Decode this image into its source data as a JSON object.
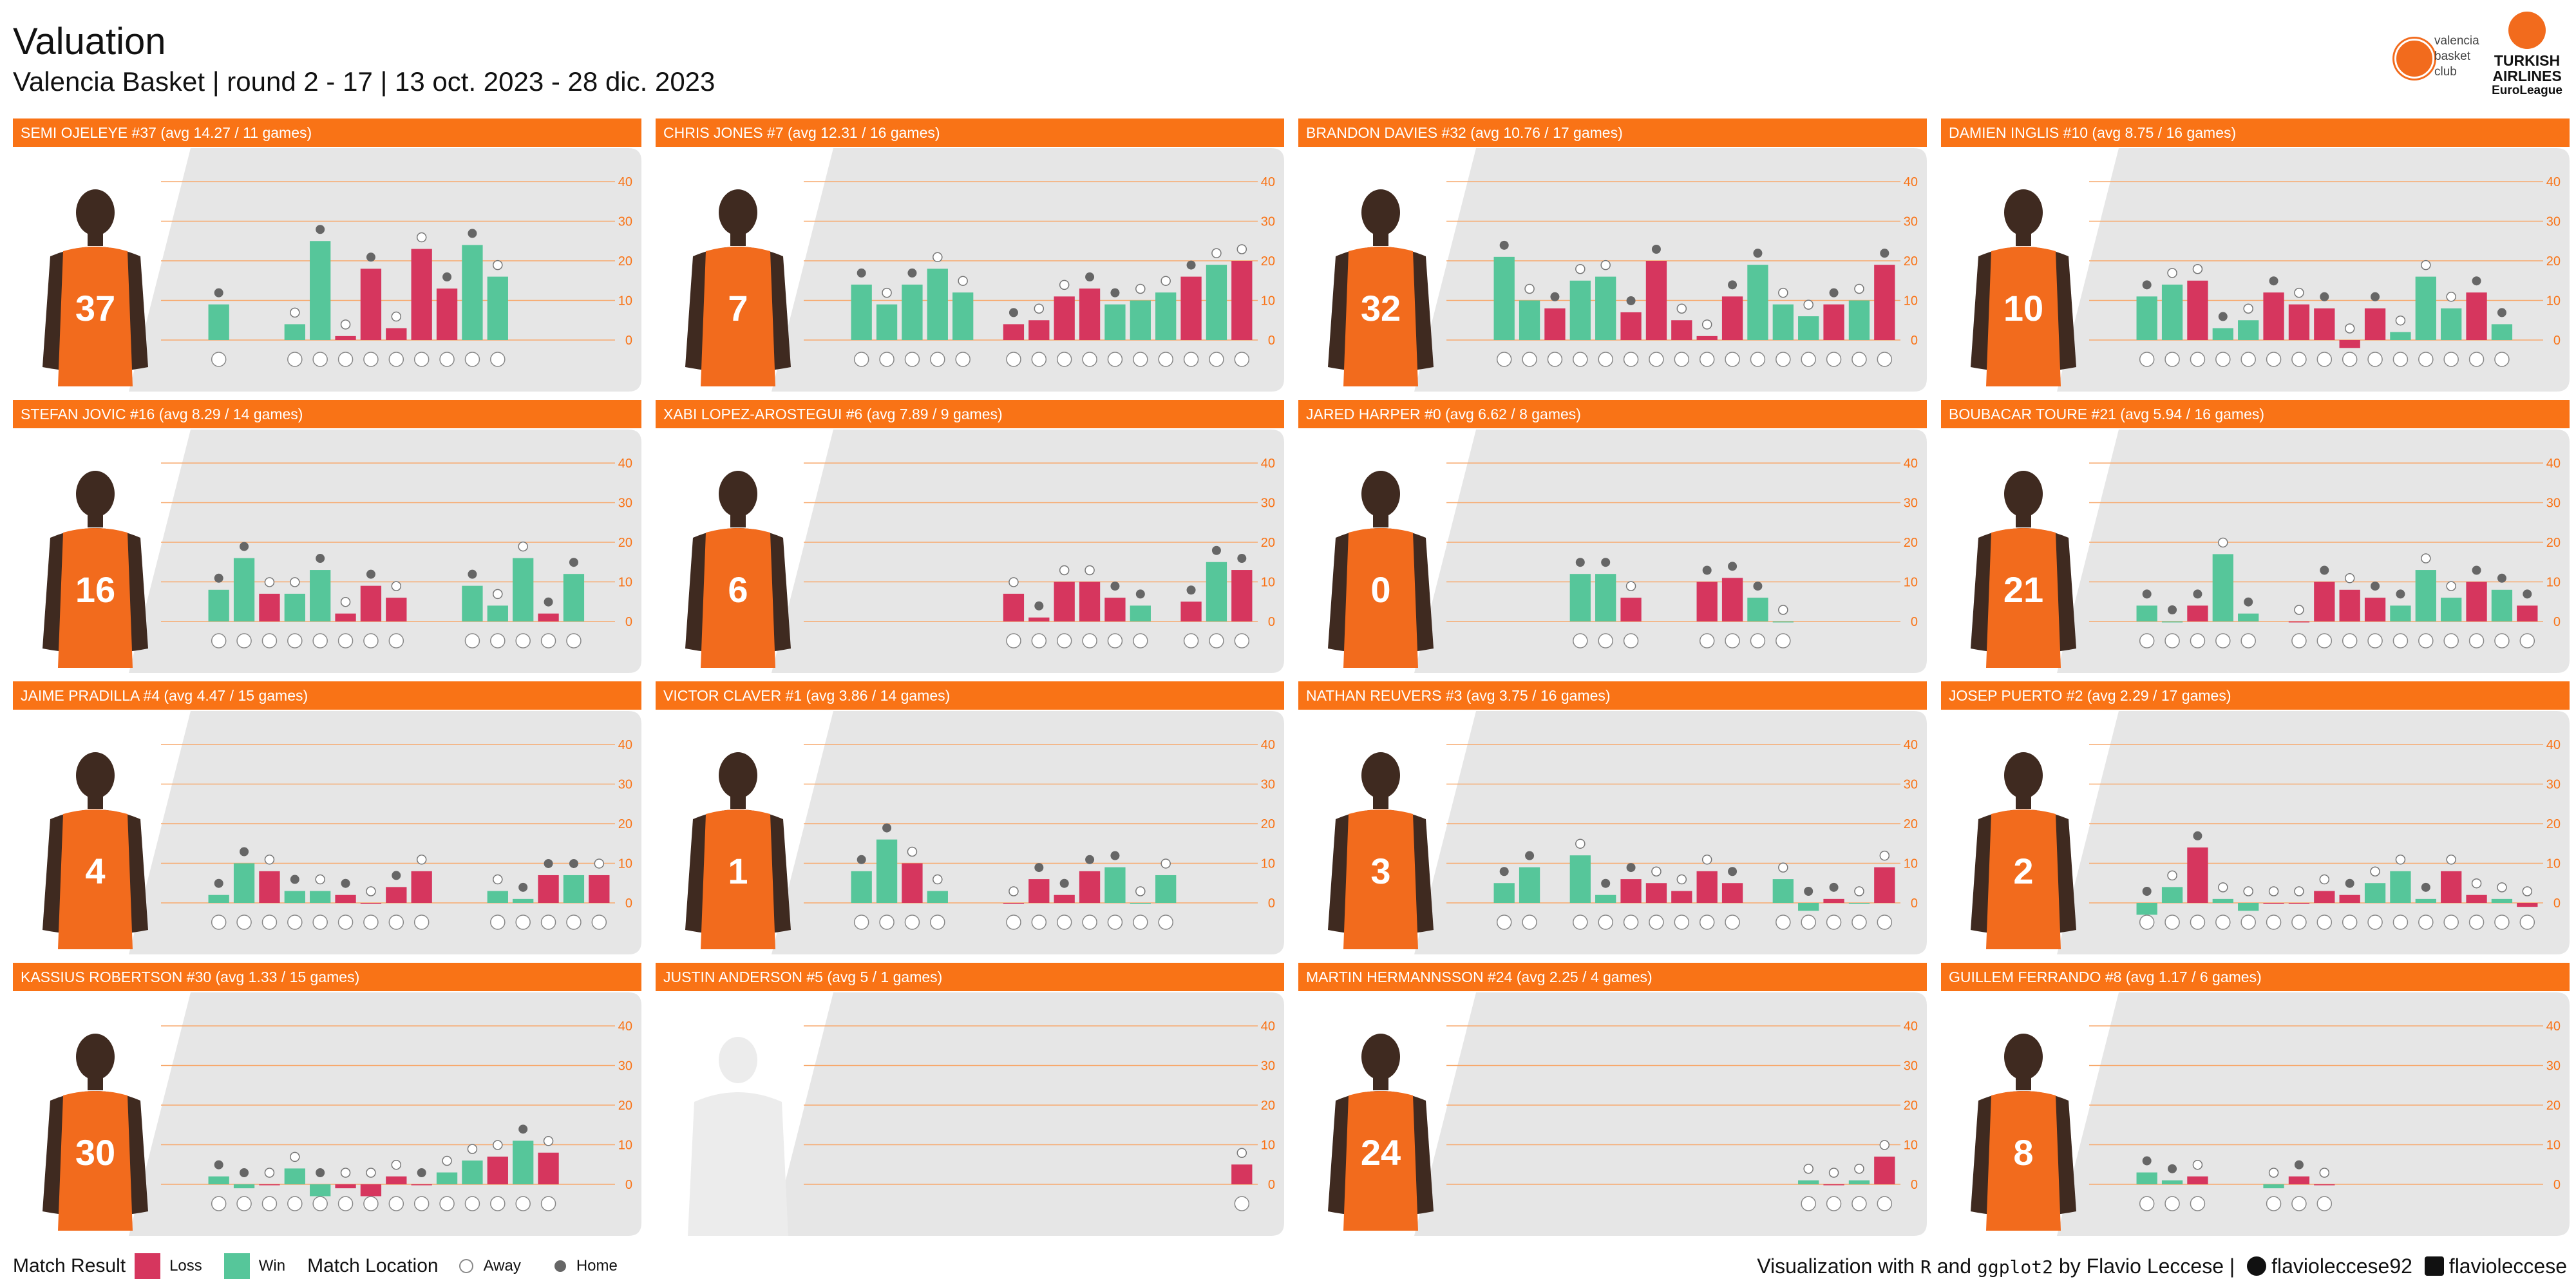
{
  "header": {
    "title": "Valuation",
    "subtitle": "Valencia Basket | round 2 - 17 | 13 oct. 2023 - 28 dic. 2023"
  },
  "brand": {
    "club_logo_text": "valencia basket club",
    "euroleague_text_1": "TURKISH AIRLINES",
    "euroleague_text_2": "EuroLeague"
  },
  "colors": {
    "strip": "#f97316",
    "loss": "#d6365e",
    "win": "#56c69a",
    "panel_bg": "#e6e6e6",
    "gridline": "#f7a96d",
    "tick": "#f97316",
    "jersey": "#f26b1d",
    "skin": "#3f2a20",
    "away_point": "#ffffff",
    "home_point": "#666666"
  },
  "chart_data": {
    "type": "bar",
    "ylim": [
      -5,
      45
    ],
    "y_ticks": [
      "0",
      "10",
      "20",
      "30",
      "40"
    ],
    "rounds": [
      2,
      3,
      4,
      5,
      6,
      7,
      8,
      9,
      10,
      11,
      12,
      13,
      14,
      15,
      16,
      17
    ],
    "panels": [
      {
        "title": "SEMI OJELEYE #37 (avg 14.27 / 11 games)",
        "number": "37",
        "values": [
          9,
          null,
          null,
          4,
          25,
          1,
          18,
          3,
          23,
          13,
          24,
          16,
          null,
          null,
          null,
          null
        ],
        "results": [
          "W",
          null,
          null,
          "W",
          "W",
          "L",
          "L",
          "L",
          "L",
          "L",
          "W",
          "W",
          null,
          null,
          null,
          null
        ],
        "locations": [
          "H",
          null,
          null,
          "A",
          "H",
          "A",
          "H",
          "A",
          "A",
          "H",
          "H",
          "A",
          null,
          null,
          null,
          null
        ]
      },
      {
        "title": "CHRIS JONES #7 (avg 12.31 / 16 games)",
        "number": "7",
        "values": [
          14,
          9,
          14,
          18,
          12,
          null,
          4,
          5,
          11,
          13,
          9,
          10,
          12,
          16,
          19,
          20
        ],
        "results": [
          "W",
          "W",
          "W",
          "W",
          "W",
          null,
          "L",
          "L",
          "L",
          "L",
          "W",
          "W",
          "W",
          "L",
          "W",
          "L"
        ],
        "locations": [
          "H",
          "A",
          "H",
          "A",
          "A",
          null,
          "H",
          "A",
          "A",
          "H",
          "H",
          "A",
          "A",
          "H",
          "A",
          "A"
        ]
      },
      {
        "title": "BRANDON DAVIES #32 (avg 10.76 / 17 games)",
        "number": "32",
        "values": [
          21,
          10,
          8,
          15,
          16,
          7,
          20,
          5,
          1,
          11,
          19,
          9,
          6,
          9,
          10,
          19
        ],
        "results": [
          "W",
          "W",
          "L",
          "W",
          "W",
          "L",
          "L",
          "L",
          "L",
          "L",
          "W",
          "W",
          "W",
          "L",
          "W",
          "L"
        ],
        "locations": [
          "H",
          "A",
          "H",
          "A",
          "A",
          "H",
          "H",
          "A",
          "A",
          "H",
          "H",
          "A",
          "A",
          "H",
          "A",
          "H"
        ]
      },
      {
        "title": "DAMIEN INGLIS #10 (avg 8.75 / 16 games)",
        "number": "10",
        "values": [
          11,
          14,
          15,
          3,
          5,
          12,
          9,
          8,
          -2,
          8,
          2,
          16,
          8,
          12,
          4,
          null
        ],
        "results": [
          "W",
          "W",
          "L",
          "W",
          "W",
          "L",
          "L",
          "L",
          "L",
          "L",
          "W",
          "W",
          "W",
          "L",
          "W",
          null
        ],
        "locations": [
          "H",
          "A",
          "A",
          "H",
          "A",
          "H",
          "A",
          "H",
          "A",
          "H",
          "A",
          "A",
          "A",
          "H",
          "H",
          null
        ]
      },
      {
        "title": "STEFAN JOVIC #16 (avg 8.29 / 14 games)",
        "number": "16",
        "values": [
          8,
          16,
          7,
          7,
          13,
          2,
          9,
          6,
          null,
          null,
          9,
          4,
          16,
          2,
          12,
          null
        ],
        "results": [
          "W",
          "W",
          "L",
          "W",
          "W",
          "L",
          "L",
          "L",
          null,
          null,
          "W",
          "W",
          "W",
          "L",
          "W",
          null
        ],
        "locations": [
          "H",
          "H",
          "A",
          "A",
          "H",
          "A",
          "H",
          "A",
          null,
          null,
          "H",
          "A",
          "A",
          "H",
          "H",
          null
        ]
      },
      {
        "title": "XABI LOPEZ-AROSTEGUI #6 (avg 7.89 / 9 games)",
        "number": "6",
        "values": [
          null,
          null,
          null,
          null,
          null,
          null,
          7,
          1,
          10,
          10,
          6,
          4,
          null,
          5,
          15,
          13
        ],
        "results": [
          null,
          null,
          null,
          null,
          null,
          null,
          "L",
          "L",
          "L",
          "L",
          "L",
          "W",
          null,
          "L",
          "W",
          "L"
        ],
        "locations": [
          null,
          null,
          null,
          null,
          null,
          null,
          "A",
          "H",
          "A",
          "A",
          "H",
          "H",
          null,
          "H",
          "H",
          "H"
        ]
      },
      {
        "title": "JARED HARPER #0 (avg 6.62 / 8 games)",
        "number": "0",
        "values": [
          null,
          null,
          null,
          12,
          12,
          6,
          null,
          null,
          10,
          11,
          6,
          0,
          null,
          null,
          null,
          null
        ],
        "results": [
          null,
          null,
          null,
          "W",
          "W",
          "L",
          null,
          null,
          "L",
          "L",
          "W",
          "W",
          null,
          null,
          null,
          null
        ],
        "locations": [
          null,
          null,
          null,
          "H",
          "H",
          "A",
          null,
          null,
          "H",
          "H",
          "H",
          "A",
          null,
          null,
          null,
          null
        ]
      },
      {
        "title": "BOUBACAR TOURE #21 (avg 5.94 / 16 games)",
        "number": "21",
        "values": [
          4,
          0,
          4,
          17,
          2,
          null,
          0,
          10,
          8,
          6,
          4,
          13,
          6,
          10,
          8,
          4
        ],
        "results": [
          "W",
          "W",
          "L",
          "W",
          "W",
          null,
          "L",
          "L",
          "L",
          "L",
          "W",
          "W",
          "W",
          "L",
          "W",
          "L"
        ],
        "locations": [
          "H",
          "H",
          "H",
          "A",
          "H",
          null,
          "A",
          "H",
          "A",
          "H",
          "H",
          "A",
          "A",
          "H",
          "H",
          "H"
        ]
      },
      {
        "title": "JAIME PRADILLA #4 (avg 4.47 / 15 games)",
        "number": "4",
        "values": [
          2,
          10,
          8,
          3,
          3,
          2,
          0,
          4,
          8,
          null,
          null,
          3,
          1,
          7,
          7,
          7
        ],
        "results": [
          "W",
          "W",
          "L",
          "W",
          "W",
          "L",
          "L",
          "L",
          "L",
          null,
          null,
          "W",
          "W",
          "L",
          "W",
          "L"
        ],
        "locations": [
          "H",
          "H",
          "A",
          "H",
          "A",
          "H",
          "A",
          "H",
          "A",
          null,
          null,
          "A",
          "H",
          "H",
          "H",
          "A"
        ]
      },
      {
        "title": "VICTOR CLAVER #1 (avg 3.86 / 14 games)",
        "number": "1",
        "values": [
          8,
          16,
          10,
          3,
          null,
          null,
          0,
          6,
          2,
          8,
          9,
          0,
          7,
          null,
          null,
          null
        ],
        "results": [
          "W",
          "W",
          "L",
          "W",
          null,
          null,
          "L",
          "L",
          "L",
          "L",
          "W",
          "W",
          "W",
          null,
          null,
          null
        ],
        "locations": [
          "H",
          "H",
          "A",
          "A",
          null,
          null,
          "A",
          "H",
          "H",
          "H",
          "H",
          "A",
          "A",
          null,
          null,
          null
        ]
      },
      {
        "title": "NATHAN REUVERS #3 (avg 3.75 / 16 games)",
        "number": "3",
        "values": [
          5,
          9,
          null,
          12,
          2,
          6,
          5,
          3,
          8,
          5,
          null,
          6,
          -2,
          1,
          0,
          9
        ],
        "results": [
          "W",
          "W",
          null,
          "W",
          "W",
          "L",
          "L",
          "L",
          "L",
          "L",
          null,
          "W",
          "W",
          "L",
          "W",
          "L"
        ],
        "locations": [
          "H",
          "H",
          null,
          "A",
          "H",
          "H",
          "A",
          "A",
          "A",
          "H",
          null,
          "A",
          "H",
          "H",
          "A",
          "A"
        ]
      },
      {
        "title": "JOSEP PUERTO #2 (avg 2.29 / 17 games)",
        "number": "2",
        "values": [
          -3,
          4,
          14,
          1,
          -2,
          0,
          0,
          3,
          2,
          5,
          8,
          1,
          8,
          2,
          1,
          -1
        ],
        "results": [
          "W",
          "W",
          "L",
          "W",
          "W",
          "L",
          "L",
          "L",
          "L",
          "W",
          "W",
          "W",
          "L",
          "L",
          "W",
          "L"
        ],
        "locations": [
          "H",
          "A",
          "H",
          "A",
          "A",
          "A",
          "A",
          "A",
          "H",
          "A",
          "A",
          "H",
          "A",
          "A",
          "A",
          "A"
        ]
      },
      {
        "title": "KASSIUS ROBERTSON #30 (avg 1.33 / 15 games)",
        "number": "30",
        "values": [
          2,
          -1,
          0,
          4,
          -3,
          -1,
          -3,
          2,
          0,
          3,
          6,
          7,
          11,
          8,
          null,
          null
        ],
        "results": [
          "W",
          "W",
          "L",
          "W",
          "W",
          "L",
          "L",
          "L",
          "L",
          "W",
          "W",
          "L",
          "W",
          "L",
          null,
          null
        ],
        "locations": [
          "H",
          "H",
          "A",
          "A",
          "H",
          "A",
          "A",
          "A",
          "H",
          "A",
          "A",
          "A",
          "H",
          "A",
          null,
          null
        ]
      },
      {
        "title": "JUSTIN ANDERSON #5 (avg 5 / 1 games)",
        "number": "",
        "values": [
          null,
          null,
          null,
          null,
          null,
          null,
          null,
          null,
          null,
          null,
          null,
          null,
          null,
          null,
          null,
          5
        ],
        "results": [
          null,
          null,
          null,
          null,
          null,
          null,
          null,
          null,
          null,
          null,
          null,
          null,
          null,
          null,
          null,
          "L"
        ],
        "locations": [
          null,
          null,
          null,
          null,
          null,
          null,
          null,
          null,
          null,
          null,
          null,
          null,
          null,
          null,
          null,
          "A"
        ]
      },
      {
        "title": "MARTIN HERMANNSSON #24 (avg 2.25 / 4 games)",
        "number": "24",
        "values": [
          null,
          null,
          null,
          null,
          null,
          null,
          null,
          null,
          null,
          null,
          null,
          null,
          1,
          0,
          1,
          7
        ],
        "results": [
          null,
          null,
          null,
          null,
          null,
          null,
          null,
          null,
          null,
          null,
          null,
          null,
          "W",
          "L",
          "W",
          "L"
        ],
        "locations": [
          null,
          null,
          null,
          null,
          null,
          null,
          null,
          null,
          null,
          null,
          null,
          null,
          "A",
          "A",
          "A",
          "A"
        ]
      },
      {
        "title": "GUILLEM FERRANDO #8 (avg 1.17 / 6 games)",
        "number": "8",
        "values": [
          3,
          1,
          2,
          null,
          null,
          -1,
          2,
          0,
          null,
          null,
          null,
          null,
          null,
          null,
          null,
          null
        ],
        "results": [
          "W",
          "W",
          "L",
          null,
          null,
          "W",
          "L",
          "L",
          null,
          null,
          null,
          null,
          null,
          null,
          null,
          null
        ],
        "locations": [
          "H",
          "H",
          "A",
          null,
          null,
          "A",
          "H",
          "A",
          null,
          null,
          null,
          null,
          null,
          null,
          null,
          null
        ]
      }
    ]
  },
  "legend": {
    "result_title": "Match Result",
    "loss": "Loss",
    "win": "Win",
    "location_title": "Match Location",
    "away": "Away",
    "home": "Home"
  },
  "credit": {
    "lead": "Visualization with",
    "tool1": "R",
    "conj": "and",
    "tool2": "ggplot2",
    "author": "by Flavio Leccese |",
    "github": "flavioleccese92",
    "linkedin": "flavioleccese",
    "github_icon": "github-icon",
    "linkedin_icon": "linkedin-icon"
  }
}
